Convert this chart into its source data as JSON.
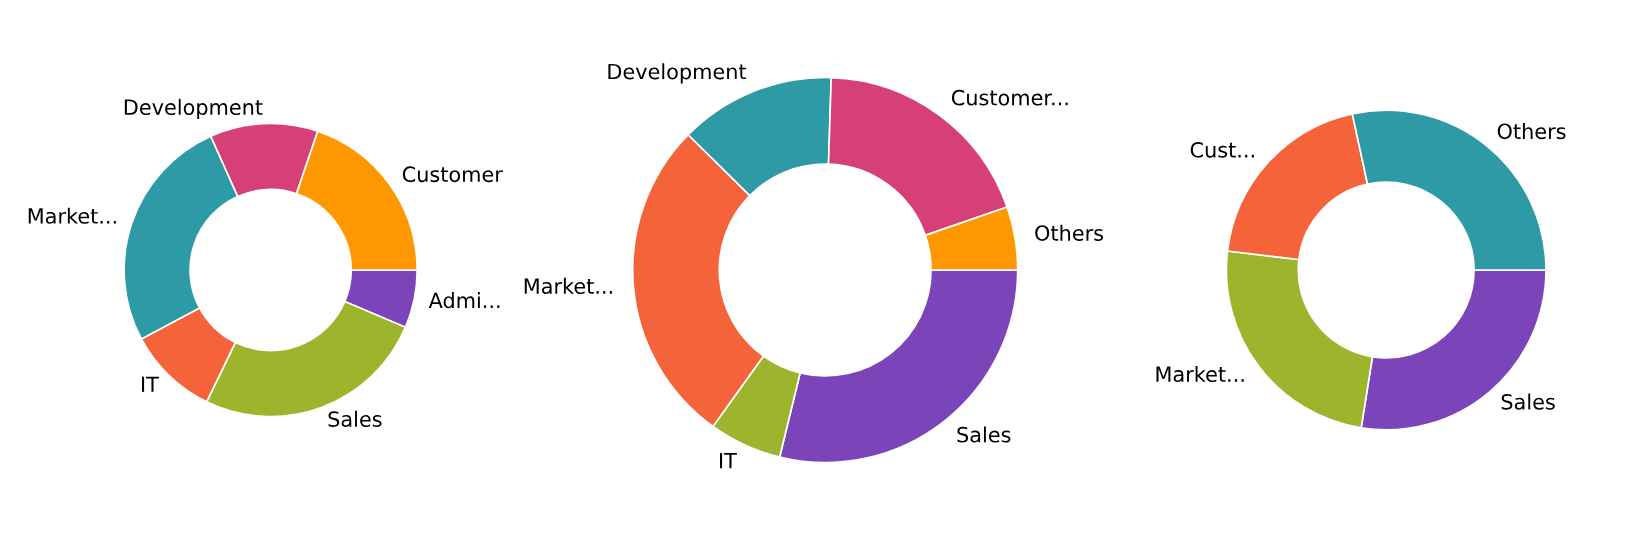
{
  "chart_data": [
    {
      "type": "donut",
      "categories": [
        "Admi...",
        "Sales",
        "IT",
        "Market...",
        "Development",
        "Customer"
      ],
      "values": [
        6.4,
        25.8,
        10,
        26.1,
        11.9,
        19.8
      ],
      "colors": [
        "#7b45b9",
        "#9db52c",
        "#f4633a",
        "#2e9aa6",
        "#d63f78",
        "#ff9800"
      ]
    },
    {
      "type": "donut",
      "categories": [
        "Sales",
        "IT",
        "Market...",
        "Development",
        "Customer...",
        "Others"
      ],
      "values": [
        28.8,
        6.1,
        27.5,
        13.1,
        19.2,
        5.3
      ],
      "colors": [
        "#7b45b9",
        "#9db52c",
        "#f4633a",
        "#2e9aa6",
        "#d63f78",
        "#ff9800"
      ]
    },
    {
      "type": "donut",
      "categories": [
        "Sales",
        "Market...",
        "Cust...",
        "Others"
      ],
      "values": [
        27.5,
        24.4,
        19.7,
        28.4
      ],
      "colors": [
        "#7b45b9",
        "#9db52c",
        "#f4633a",
        "#2e9aa6"
      ]
    }
  ]
}
